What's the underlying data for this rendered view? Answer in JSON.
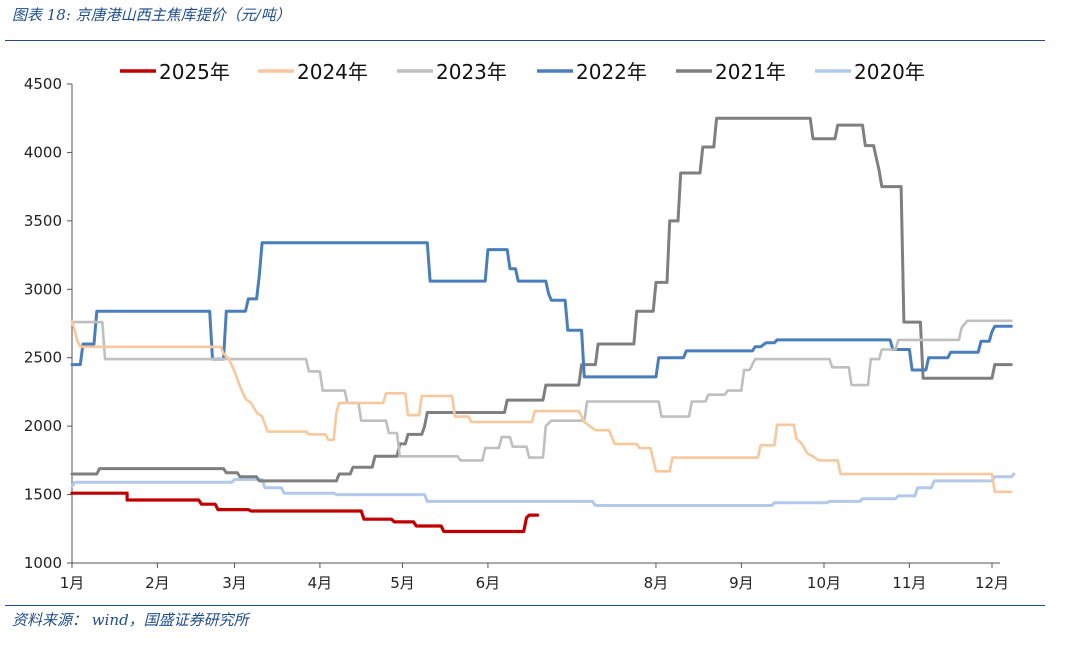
{
  "figure_title": "图表 18:  京唐港山西主焦库提价（元/吨）",
  "source_note": "资料来源：  wind，国盛证券研究所",
  "chart_data": {
    "type": "line",
    "title": "",
    "xlabel": "",
    "ylabel": "",
    "ylim": [
      1000,
      4500
    ],
    "yticks": [
      1000,
      1500,
      2000,
      2500,
      3000,
      3500,
      4000,
      4500
    ],
    "xticks": [
      {
        "label": "1月",
        "day": 1
      },
      {
        "label": "2月",
        "day": 32
      },
      {
        "label": "3月",
        "day": 60
      },
      {
        "label": "4月",
        "day": 91
      },
      {
        "label": "5月",
        "day": 121
      },
      {
        "label": "6月",
        "day": 152
      },
      {
        "label": "8月",
        "day": 213
      },
      {
        "label": "9月",
        "day": 244
      },
      {
        "label": "10月",
        "day": 274
      },
      {
        "label": "11月",
        "day": 305
      },
      {
        "label": "12月",
        "day": 335
      }
    ],
    "xlim": [
      1,
      340
    ],
    "grid": false,
    "legend_position": "top",
    "series": [
      {
        "name": "2025年",
        "color": "#c00000",
        "width": 3.2,
        "points": [
          [
            1,
            1510
          ],
          [
            20,
            1510
          ],
          [
            21,
            1510
          ],
          [
            21,
            1460
          ],
          [
            47,
            1460
          ],
          [
            48,
            1430
          ],
          [
            53,
            1430
          ],
          [
            54,
            1390
          ],
          [
            65,
            1390
          ],
          [
            66,
            1380
          ],
          [
            96,
            1380
          ],
          [
            106,
            1380
          ],
          [
            107,
            1320
          ],
          [
            117,
            1320
          ],
          [
            118,
            1300
          ],
          [
            125,
            1300
          ],
          [
            126,
            1270
          ],
          [
            135,
            1270
          ],
          [
            136,
            1230
          ],
          [
            165,
            1230
          ],
          [
            166,
            1330
          ],
          [
            167,
            1350
          ],
          [
            170,
            1350
          ]
        ]
      },
      {
        "name": "2024年",
        "color": "#f8c89c",
        "width": 2.6,
        "points": [
          [
            1,
            2770
          ],
          [
            3,
            2620
          ],
          [
            4,
            2580
          ],
          [
            55,
            2580
          ],
          [
            56,
            2530
          ],
          [
            58,
            2490
          ],
          [
            60,
            2400
          ],
          [
            62,
            2290
          ],
          [
            64,
            2200
          ],
          [
            66,
            2170
          ],
          [
            68,
            2100
          ],
          [
            70,
            2070
          ],
          [
            72,
            1960
          ],
          [
            86,
            1960
          ],
          [
            87,
            1940
          ],
          [
            93,
            1940
          ],
          [
            94,
            1900
          ],
          [
            96,
            1900
          ],
          [
            97,
            2100
          ],
          [
            98,
            2170
          ],
          [
            114,
            2170
          ],
          [
            115,
            2240
          ],
          [
            122,
            2240
          ],
          [
            123,
            2080
          ],
          [
            127,
            2080
          ],
          [
            128,
            2220
          ],
          [
            139,
            2220
          ],
          [
            140,
            2070
          ],
          [
            145,
            2070
          ],
          [
            146,
            2030
          ],
          [
            168,
            2030
          ],
          [
            169,
            2110
          ],
          [
            185,
            2110
          ],
          [
            187,
            2030
          ],
          [
            189,
            2000
          ],
          [
            191,
            1970
          ],
          [
            196,
            1970
          ],
          [
            198,
            1870
          ],
          [
            206,
            1870
          ],
          [
            207,
            1840
          ],
          [
            211,
            1840
          ],
          [
            213,
            1670
          ],
          [
            218,
            1670
          ],
          [
            219,
            1770
          ],
          [
            250,
            1770
          ],
          [
            251,
            1860
          ],
          [
            256,
            1860
          ],
          [
            257,
            2010
          ],
          [
            263,
            2010
          ],
          [
            264,
            1910
          ],
          [
            266,
            1870
          ],
          [
            268,
            1800
          ],
          [
            270,
            1780
          ],
          [
            272,
            1750
          ],
          [
            279,
            1750
          ],
          [
            280,
            1650
          ],
          [
            335,
            1650
          ],
          [
            336,
            1520
          ],
          [
            342,
            1520
          ]
        ]
      },
      {
        "name": "2023年",
        "color": "#bfbfbf",
        "width": 2.6,
        "points": [
          [
            1,
            2760
          ],
          [
            12,
            2760
          ],
          [
            13,
            2490
          ],
          [
            86,
            2490
          ],
          [
            87,
            2400
          ],
          [
            91,
            2400
          ],
          [
            92,
            2260
          ],
          [
            100,
            2260
          ],
          [
            101,
            2170
          ],
          [
            105,
            2170
          ],
          [
            106,
            2040
          ],
          [
            115,
            2040
          ],
          [
            116,
            1950
          ],
          [
            119,
            1950
          ],
          [
            120,
            1780
          ],
          [
            141,
            1780
          ],
          [
            142,
            1750
          ],
          [
            150,
            1750
          ],
          [
            151,
            1840
          ],
          [
            156,
            1840
          ],
          [
            157,
            1920
          ],
          [
            160,
            1920
          ],
          [
            161,
            1850
          ],
          [
            166,
            1850
          ],
          [
            167,
            1770
          ],
          [
            172,
            1770
          ],
          [
            173,
            2000
          ],
          [
            175,
            2040
          ],
          [
            187,
            2040
          ],
          [
            188,
            2180
          ],
          [
            214,
            2180
          ],
          [
            215,
            2070
          ],
          [
            225,
            2070
          ],
          [
            226,
            2180
          ],
          [
            231,
            2180
          ],
          [
            232,
            2230
          ],
          [
            238,
            2230
          ],
          [
            239,
            2260
          ],
          [
            244,
            2260
          ],
          [
            245,
            2410
          ],
          [
            247,
            2410
          ],
          [
            249,
            2490
          ],
          [
            276,
            2490
          ],
          [
            277,
            2430
          ],
          [
            283,
            2430
          ],
          [
            284,
            2300
          ],
          [
            290,
            2300
          ],
          [
            291,
            2490
          ],
          [
            294,
            2490
          ],
          [
            295,
            2560
          ],
          [
            300,
            2560
          ],
          [
            301,
            2630
          ],
          [
            323,
            2630
          ],
          [
            324,
            2720
          ],
          [
            326,
            2770
          ],
          [
            342,
            2770
          ]
        ]
      },
      {
        "name": "2022年",
        "color": "#4a7ebb",
        "width": 3.0,
        "points": [
          [
            1,
            2450
          ],
          [
            4,
            2450
          ],
          [
            5,
            2600
          ],
          [
            9,
            2600
          ],
          [
            10,
            2840
          ],
          [
            51,
            2840
          ],
          [
            52,
            2490
          ],
          [
            56,
            2490
          ],
          [
            57,
            2840
          ],
          [
            64,
            2840
          ],
          [
            65,
            2930
          ],
          [
            68,
            2930
          ],
          [
            69,
            3100
          ],
          [
            70,
            3340
          ],
          [
            130,
            3340
          ],
          [
            131,
            3060
          ],
          [
            151,
            3060
          ],
          [
            152,
            3290
          ],
          [
            159,
            3290
          ],
          [
            160,
            3150
          ],
          [
            162,
            3150
          ],
          [
            163,
            3060
          ],
          [
            173,
            3060
          ],
          [
            174,
            2970
          ],
          [
            175,
            2920
          ],
          [
            180,
            2920
          ],
          [
            181,
            2700
          ],
          [
            186,
            2700
          ],
          [
            187,
            2360
          ],
          [
            213,
            2360
          ],
          [
            214,
            2500
          ],
          [
            223,
            2500
          ],
          [
            224,
            2550
          ],
          [
            248,
            2550
          ],
          [
            249,
            2580
          ],
          [
            251,
            2580
          ],
          [
            253,
            2610
          ],
          [
            256,
            2610
          ],
          [
            257,
            2630
          ],
          [
            298,
            2630
          ],
          [
            299,
            2560
          ],
          [
            305,
            2560
          ],
          [
            306,
            2410
          ],
          [
            311,
            2410
          ],
          [
            312,
            2500
          ],
          [
            319,
            2500
          ],
          [
            320,
            2540
          ],
          [
            330,
            2540
          ],
          [
            331,
            2620
          ],
          [
            334,
            2620
          ],
          [
            335,
            2690
          ],
          [
            336,
            2730
          ],
          [
            342,
            2730
          ]
        ]
      },
      {
        "name": "2021年",
        "color": "#7f7f7f",
        "width": 3.0,
        "points": [
          [
            1,
            1650
          ],
          [
            10,
            1650
          ],
          [
            11,
            1690
          ],
          [
            56,
            1690
          ],
          [
            57,
            1660
          ],
          [
            61,
            1660
          ],
          [
            62,
            1630
          ],
          [
            68,
            1630
          ],
          [
            69,
            1600
          ],
          [
            97,
            1600
          ],
          [
            98,
            1650
          ],
          [
            102,
            1650
          ],
          [
            103,
            1700
          ],
          [
            110,
            1700
          ],
          [
            111,
            1780
          ],
          [
            119,
            1780
          ],
          [
            120,
            1870
          ],
          [
            122,
            1870
          ],
          [
            123,
            1940
          ],
          [
            128,
            1940
          ],
          [
            129,
            2000
          ],
          [
            130,
            2100
          ],
          [
            158,
            2100
          ],
          [
            159,
            2190
          ],
          [
            172,
            2190
          ],
          [
            173,
            2300
          ],
          [
            185,
            2300
          ],
          [
            186,
            2450
          ],
          [
            191,
            2450
          ],
          [
            192,
            2600
          ],
          [
            205,
            2600
          ],
          [
            206,
            2840
          ],
          [
            212,
            2840
          ],
          [
            213,
            3050
          ],
          [
            217,
            3050
          ],
          [
            218,
            3500
          ],
          [
            221,
            3500
          ],
          [
            222,
            3850
          ],
          [
            229,
            3850
          ],
          [
            230,
            4040
          ],
          [
            234,
            4040
          ],
          [
            235,
            4250
          ],
          [
            269,
            4250
          ],
          [
            270,
            4100
          ],
          [
            278,
            4100
          ],
          [
            279,
            4200
          ],
          [
            288,
            4200
          ],
          [
            289,
            4050
          ],
          [
            292,
            4050
          ],
          [
            293,
            3960
          ],
          [
            294,
            3870
          ],
          [
            295,
            3750
          ],
          [
            302,
            3750
          ],
          [
            303,
            2760
          ],
          [
            309,
            2760
          ],
          [
            310,
            2350
          ],
          [
            335,
            2350
          ],
          [
            336,
            2450
          ],
          [
            342,
            2450
          ]
        ]
      },
      {
        "name": "2020年",
        "color": "#b3c9ea",
        "width": 3.0,
        "points": [
          [
            1,
            1560
          ],
          [
            2,
            1590
          ],
          [
            59,
            1590
          ],
          [
            60,
            1610
          ],
          [
            70,
            1610
          ],
          [
            71,
            1550
          ],
          [
            77,
            1550
          ],
          [
            78,
            1510
          ],
          [
            96,
            1510
          ],
          [
            97,
            1500
          ],
          [
            129,
            1500
          ],
          [
            130,
            1450
          ],
          [
            190,
            1450
          ],
          [
            191,
            1420
          ],
          [
            255,
            1420
          ],
          [
            256,
            1440
          ],
          [
            275,
            1440
          ],
          [
            276,
            1450
          ],
          [
            287,
            1450
          ],
          [
            288,
            1470
          ],
          [
            300,
            1470
          ],
          [
            301,
            1490
          ],
          [
            307,
            1490
          ],
          [
            308,
            1550
          ],
          [
            313,
            1550
          ],
          [
            314,
            1600
          ],
          [
            335,
            1600
          ],
          [
            336,
            1630
          ],
          [
            342,
            1630
          ],
          [
            343,
            1650
          ]
        ]
      }
    ]
  }
}
